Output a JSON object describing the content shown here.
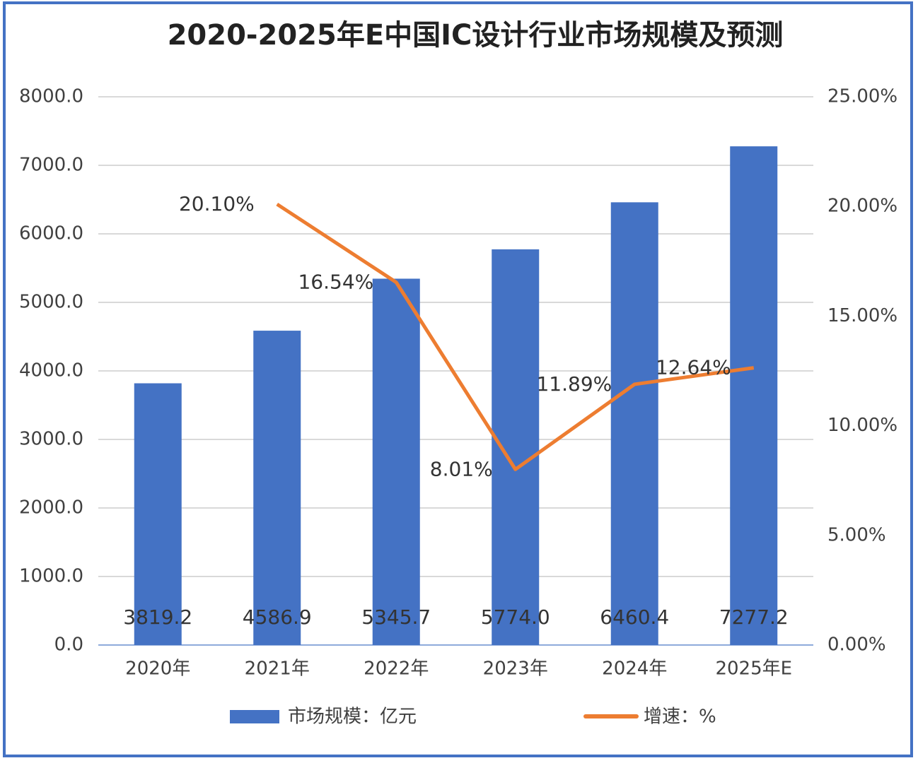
{
  "chart_data": {
    "type": "bar_line",
    "title": "2020-2025年E中国IC设计行业市场规模及预测",
    "categories": [
      "2020年",
      "2021年",
      "2022年",
      "2023年",
      "2024年",
      "2025年E"
    ],
    "series": [
      {
        "name": "市场规模：亿元",
        "type": "bar",
        "color": "#4472c4",
        "values": [
          3819.2,
          4586.9,
          5345.7,
          5774.0,
          6460.4,
          7277.2
        ],
        "value_labels": [
          "3819.2",
          "4586.9",
          "5345.7",
          "5774.0",
          "6460.4",
          "7277.2"
        ]
      },
      {
        "name": "增速：%",
        "type": "line",
        "axis": "y2",
        "color": "#ed7d31",
        "values": [
          null,
          20.1,
          16.54,
          8.01,
          11.89,
          12.64
        ],
        "value_labels": [
          null,
          "20.10%",
          "16.54%",
          "8.01%",
          "11.89%",
          "12.64%"
        ]
      }
    ],
    "ylim": [
      0,
      8000
    ],
    "yticks": [
      {
        "value": 0,
        "label": "0.0"
      },
      {
        "value": 1000,
        "label": "1000.0"
      },
      {
        "value": 2000,
        "label": "2000.0"
      },
      {
        "value": 3000,
        "label": "3000.0"
      },
      {
        "value": 4000,
        "label": "4000.0"
      },
      {
        "value": 5000,
        "label": "5000.0"
      },
      {
        "value": 6000,
        "label": "6000.0"
      },
      {
        "value": 7000,
        "label": "7000.0"
      },
      {
        "value": 8000,
        "label": "8000.0"
      }
    ],
    "y2lim": [
      0,
      25
    ],
    "y2ticks": [
      {
        "value": 0,
        "label": "0.00%"
      },
      {
        "value": 5,
        "label": "5.00%"
      },
      {
        "value": 10,
        "label": "10.00%"
      },
      {
        "value": 15,
        "label": "15.00%"
      },
      {
        "value": 20,
        "label": "20.00%"
      },
      {
        "value": 25,
        "label": "25.00%"
      }
    ],
    "grid": true,
    "legend": "bottom"
  }
}
